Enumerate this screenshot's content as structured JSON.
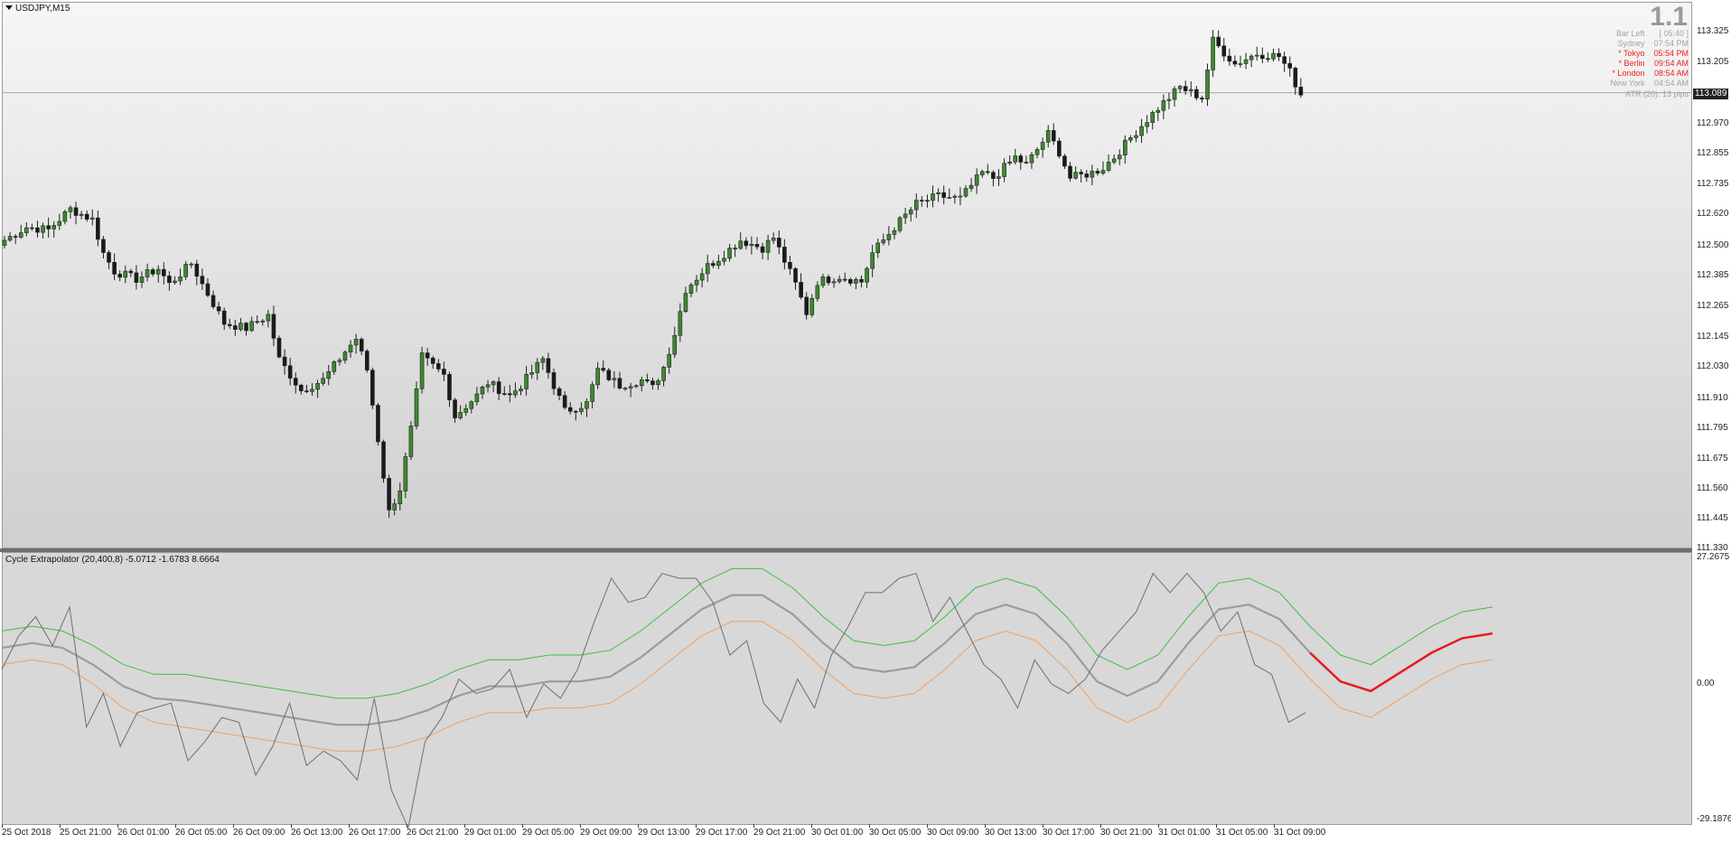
{
  "main": {
    "symbol_title": "USDJPY,M15",
    "big_value": "1.1",
    "info_rows": [
      {
        "label": "Bar Left",
        "value": "[ 05:40 ]",
        "style": "dim"
      },
      {
        "label": "Sydney",
        "value": "07:54 PM",
        "style": "dim"
      },
      {
        "label": "* Tokyo",
        "value": "05:54 PM",
        "style": "hot"
      },
      {
        "label": "* Berlin",
        "value": "09:54 AM",
        "style": "hot"
      },
      {
        "label": "* London",
        "value": "08:54 AM",
        "style": "hot"
      },
      {
        "label": "New York",
        "value": "04:54 AM",
        "style": "dim"
      }
    ],
    "atr": "ATR (20): 13 pips",
    "price_axis": [
      "113.325",
      "113.205",
      "112.970",
      "112.855",
      "112.735",
      "112.620",
      "112.500",
      "112.385",
      "112.265",
      "112.145",
      "112.030",
      "111.910",
      "111.795",
      "111.675",
      "111.560",
      "111.445",
      "111.330"
    ],
    "current_price": "113.089",
    "price_range": [
      111.33,
      113.44
    ],
    "colors": {
      "bull_body": "#3c8a2e",
      "bear_body": "#1a1a1a",
      "wick": "#202020",
      "price_line": "#a8a8a8"
    }
  },
  "indicator": {
    "title": "Cycle Extrapolator (20,400,8) -5.0712 -1.6783 8.6664",
    "axis_top": "27.2675",
    "axis_zero": "0.00",
    "axis_bottom": "-29.1876",
    "range": [
      -29.1876,
      27.2675
    ],
    "colors": {
      "upper_band": "#3fbf3f",
      "lower_band": "#f0a060",
      "mid_line": "#9c9c9c",
      "oscillator": "#6e6e6e",
      "forecast": "#e81a1a"
    }
  },
  "time_axis": [
    "25 Oct 2018",
    "25 Oct 21:00",
    "26 Oct 01:00",
    "26 Oct 05:00",
    "26 Oct 09:00",
    "26 Oct 13:00",
    "26 Oct 17:00",
    "26 Oct 21:00",
    "29 Oct 01:00",
    "29 Oct 05:00",
    "29 Oct 09:00",
    "29 Oct 13:00",
    "29 Oct 17:00",
    "29 Oct 21:00",
    "30 Oct 01:00",
    "30 Oct 05:00",
    "30 Oct 09:00",
    "30 Oct 13:00",
    "30 Oct 17:00",
    "30 Oct 21:00",
    "31 Oct 01:00",
    "31 Oct 05:00",
    "31 Oct 09:00"
  ],
  "chart_data": [
    {
      "type": "candlestick",
      "title": "USDJPY,M15",
      "x_ticks": [
        "25 Oct 2018",
        "25 Oct 21:00",
        "26 Oct 01:00",
        "26 Oct 05:00",
        "26 Oct 09:00",
        "26 Oct 13:00",
        "26 Oct 17:00",
        "26 Oct 21:00",
        "29 Oct 01:00",
        "29 Oct 05:00",
        "29 Oct 09:00",
        "29 Oct 13:00",
        "29 Oct 17:00",
        "29 Oct 21:00",
        "30 Oct 01:00",
        "30 Oct 05:00",
        "30 Oct 09:00",
        "30 Oct 13:00",
        "30 Oct 17:00",
        "30 Oct 21:00",
        "31 Oct 01:00",
        "31 Oct 05:00",
        "31 Oct 09:00"
      ],
      "close_path": [
        [
          0,
          112.52
        ],
        [
          4,
          112.57
        ],
        [
          8,
          112.56
        ],
        [
          12,
          112.64
        ],
        [
          16,
          112.6
        ],
        [
          18,
          112.47
        ],
        [
          20,
          112.4
        ],
        [
          24,
          112.37
        ],
        [
          28,
          112.41
        ],
        [
          30,
          112.35
        ],
        [
          34,
          112.43
        ],
        [
          36,
          112.35
        ],
        [
          40,
          112.2
        ],
        [
          44,
          112.18
        ],
        [
          48,
          112.23
        ],
        [
          50,
          112.06
        ],
        [
          54,
          111.94
        ],
        [
          58,
          111.98
        ],
        [
          62,
          112.09
        ],
        [
          64,
          112.14
        ],
        [
          66,
          112.02
        ],
        [
          68,
          111.75
        ],
        [
          70,
          111.47
        ],
        [
          72,
          111.56
        ],
        [
          74,
          111.79
        ],
        [
          76,
          112.07
        ],
        [
          80,
          112.0
        ],
        [
          82,
          111.84
        ],
        [
          86,
          111.92
        ],
        [
          88,
          111.97
        ],
        [
          92,
          111.92
        ],
        [
          94,
          111.96
        ],
        [
          98,
          112.06
        ],
        [
          102,
          111.86
        ],
        [
          106,
          111.89
        ],
        [
          108,
          112.02
        ],
        [
          112,
          111.96
        ],
        [
          116,
          111.98
        ],
        [
          118,
          111.95
        ],
        [
          120,
          112.03
        ],
        [
          122,
          112.16
        ],
        [
          124,
          112.33
        ],
        [
          128,
          112.42
        ],
        [
          130,
          112.45
        ],
        [
          134,
          112.52
        ],
        [
          138,
          112.49
        ],
        [
          140,
          112.53
        ],
        [
          144,
          112.35
        ],
        [
          146,
          112.24
        ],
        [
          148,
          112.36
        ],
        [
          152,
          112.38
        ],
        [
          156,
          112.36
        ],
        [
          158,
          112.47
        ],
        [
          162,
          112.57
        ],
        [
          166,
          112.66
        ],
        [
          170,
          112.69
        ],
        [
          174,
          112.68
        ],
        [
          178,
          112.78
        ],
        [
          180,
          112.76
        ],
        [
          184,
          112.84
        ],
        [
          186,
          112.81
        ],
        [
          190,
          112.93
        ],
        [
          192,
          112.86
        ],
        [
          194,
          112.76
        ],
        [
          198,
          112.78
        ],
        [
          200,
          112.8
        ],
        [
          202,
          112.84
        ],
        [
          206,
          112.94
        ],
        [
          210,
          113.03
        ],
        [
          214,
          113.11
        ],
        [
          218,
          113.07
        ],
        [
          220,
          113.29
        ],
        [
          224,
          113.2
        ],
        [
          228,
          113.24
        ],
        [
          232,
          113.23
        ],
        [
          234,
          113.17
        ],
        [
          236,
          113.08
        ]
      ],
      "current_price": 113.089,
      "ylim": [
        111.33,
        113.44
      ]
    },
    {
      "type": "line",
      "title": "Cycle Extrapolator (20,400,8) -5.0712 -1.6783 8.6664",
      "series": [
        {
          "values": [
            3,
            10,
            14,
            8,
            16,
            -9,
            -2,
            -13,
            -6,
            -5,
            -4,
            -16,
            -12,
            -7,
            -8,
            -19,
            -13,
            -4,
            -17,
            -14,
            -16,
            -20,
            -3,
            -22,
            -30,
            -12,
            -7,
            1,
            -2,
            -1,
            3,
            -7,
            0,
            -3,
            3,
            13,
            22,
            17,
            18,
            23,
            22,
            22,
            17,
            6,
            9,
            -4,
            -8,
            1,
            -5,
            6,
            12,
            19,
            19,
            22,
            23,
            13,
            18,
            11,
            4,
            1,
            -5,
            5,
            0,
            -2,
            1,
            7,
            11,
            15,
            23,
            19,
            23,
            19,
            11,
            15,
            4,
            2,
            -8,
            -6
          ]
        },
        {
          "values": [
            11,
            12,
            11,
            8,
            4,
            2,
            2,
            1,
            0,
            -1,
            -2,
            -3,
            -3,
            -2,
            0,
            3,
            5,
            5,
            6,
            6,
            7,
            11,
            16,
            21,
            24,
            24,
            20,
            14,
            9,
            8,
            9,
            14,
            20,
            22,
            20,
            14,
            6,
            3,
            6,
            14,
            21,
            22,
            19,
            12,
            6,
            4,
            8,
            12,
            15,
            16
          ]
        },
        {
          "values": [
            4,
            5,
            4,
            0,
            -5,
            -8,
            -9,
            -10,
            -11,
            -12,
            -13,
            -14,
            -14,
            -13,
            -11,
            -8,
            -6,
            -6,
            -5,
            -5,
            -4,
            0,
            5,
            10,
            13,
            13,
            9,
            3,
            -2,
            -3,
            -2,
            3,
            9,
            11,
            9,
            3,
            -5,
            -8,
            -5,
            3,
            10,
            11,
            8,
            1,
            -5,
            -7,
            -3,
            1,
            4,
            5
          ]
        }
      ],
      "ylim": [
        -29.1876,
        27.2675
      ]
    }
  ]
}
